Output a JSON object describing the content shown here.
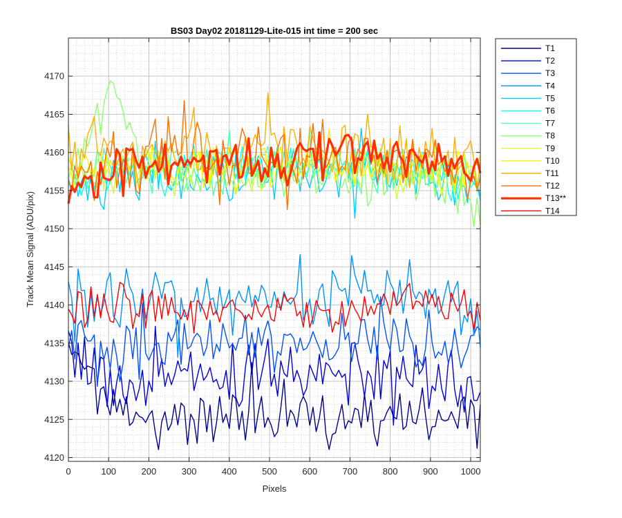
{
  "chart_data": {
    "type": "line",
    "title": "BS03 Day02 20181129-Lite-015 int time = 200 sec",
    "xlabel": "Pixels",
    "ylabel": "Track Mean Signal (ADU/pix)",
    "xlim": [
      0,
      1024
    ],
    "ylim": [
      4119.5,
      4175
    ],
    "x_ticks": [
      0,
      100,
      200,
      300,
      400,
      500,
      600,
      700,
      800,
      900,
      1000
    ],
    "y_ticks": [
      4120,
      4125,
      4130,
      4135,
      4140,
      4145,
      4150,
      4155,
      4160,
      4165,
      4170
    ],
    "y_minor_step": 1,
    "grid": true,
    "minor_grid": true,
    "legend_position": "outside-right",
    "x_sample_step": 8,
    "series": [
      {
        "name": "T1",
        "color": "#00008F",
        "width": 1.4,
        "noise": 1.8,
        "seed": 1,
        "base": [
          4135,
          4133,
          4130,
          4128,
          4125,
          4125,
          4125,
          4125,
          4125,
          4125,
          4125,
          4125,
          4126,
          4125,
          4124,
          4124,
          4125,
          4126,
          4126,
          4125,
          4124,
          4124,
          4125,
          4125,
          4125,
          4125,
          4125,
          4124,
          4125,
          4126,
          4126,
          4125
        ]
      },
      {
        "name": "T2",
        "color": "#0000D8",
        "width": 1.4,
        "noise": 2.0,
        "seed": 2,
        "base": [
          4133,
          4132,
          4131,
          4131,
          4130,
          4130,
          4131,
          4131,
          4131,
          4132,
          4131,
          4131,
          4131,
          4132,
          4131,
          4131,
          4131,
          4131,
          4130,
          4131,
          4131,
          4131,
          4131,
          4131,
          4130,
          4130,
          4131,
          4131,
          4130,
          4130,
          4130,
          4131
        ]
      },
      {
        "name": "T3",
        "color": "#0050FF",
        "width": 1.4,
        "noise": 2.0,
        "seed": 3,
        "base": [
          4136,
          4136,
          4135,
          4135,
          4134,
          4135,
          4135,
          4135,
          4135,
          4135,
          4135,
          4135,
          4135,
          4136,
          4136,
          4135,
          4135,
          4135,
          4135,
          4135,
          4135,
          4135,
          4136,
          4136,
          4136,
          4135,
          4135,
          4135,
          4135,
          4134,
          4135,
          4136
        ]
      },
      {
        "name": "T4",
        "color": "#0090FF",
        "width": 1.4,
        "noise": 2.2,
        "seed": 4,
        "base": [
          4141,
          4140,
          4140,
          4140,
          4140,
          4141,
          4140,
          4140,
          4140,
          4141,
          4141,
          4141,
          4140,
          4141,
          4141,
          4141,
          4140,
          4141,
          4141,
          4142,
          4142,
          4143,
          4142,
          4143,
          4143,
          4142,
          4142,
          4142,
          4141,
          4140,
          4140,
          4139
        ]
      },
      {
        "name": "T5",
        "color": "#00CFFF",
        "width": 1.4,
        "noise": 1.6,
        "seed": 5,
        "base": [
          4156,
          4155,
          4155,
          4156,
          4157,
          4157,
          4157,
          4157,
          4157,
          4157,
          4157,
          4157,
          4157,
          4157,
          4157,
          4157,
          4157,
          4157,
          4157,
          4157,
          4157,
          4157,
          4157,
          4157,
          4157,
          4157,
          4157,
          4157,
          4156,
          4156,
          4156,
          4155
        ]
      },
      {
        "name": "T6",
        "color": "#10FFEF",
        "width": 1.4,
        "noise": 1.5,
        "seed": 6,
        "base": [
          4156,
          4156,
          4157,
          4157,
          4157,
          4158,
          4158,
          4158,
          4158,
          4158,
          4158,
          4158,
          4158,
          4158,
          4158,
          4158,
          4158,
          4158,
          4158,
          4158,
          4158,
          4158,
          4158,
          4158,
          4158,
          4158,
          4158,
          4158,
          4157,
          4157,
          4157,
          4156
        ]
      },
      {
        "name": "T7",
        "color": "#50FFAF",
        "width": 1.4,
        "noise": 1.5,
        "seed": 7,
        "base": [
          4157,
          4157,
          4158,
          4159,
          4158,
          4158,
          4158,
          4158,
          4158,
          4158,
          4158,
          4158,
          4158,
          4158,
          4158,
          4158,
          4158,
          4158,
          4158,
          4158,
          4158,
          4158,
          4158,
          4158,
          4158,
          4158,
          4157,
          4157,
          4157,
          4156,
          4156,
          4156
        ]
      },
      {
        "name": "T8",
        "color": "#8FFF70",
        "width": 1.4,
        "noise": 1.6,
        "seed": 8,
        "base": [
          4158,
          4160,
          4164,
          4168,
          4166,
          4161,
          4159,
          4158,
          4158,
          4157,
          4157,
          4157,
          4157,
          4157,
          4157,
          4157,
          4157,
          4157,
          4157,
          4157,
          4157,
          4157,
          4157,
          4157,
          4157,
          4156,
          4156,
          4156,
          4155,
          4155,
          4154,
          4153
        ]
      },
      {
        "name": "T9",
        "color": "#CFFF30",
        "width": 1.4,
        "noise": 1.5,
        "seed": 9,
        "base": [
          4158,
          4158,
          4158,
          4158,
          4158,
          4158,
          4158,
          4158,
          4158,
          4158,
          4158,
          4158,
          4158,
          4158,
          4158,
          4158,
          4158,
          4158,
          4158,
          4158,
          4158,
          4158,
          4158,
          4158,
          4158,
          4158,
          4158,
          4158,
          4158,
          4157,
          4157,
          4157
        ]
      },
      {
        "name": "T10",
        "color": "#FFEF00",
        "width": 1.4,
        "noise": 1.5,
        "seed": 10,
        "base": [
          4158,
          4158,
          4158,
          4158,
          4158,
          4158,
          4158,
          4158,
          4158,
          4158,
          4158,
          4158,
          4158,
          4158,
          4158,
          4158,
          4158,
          4158,
          4158,
          4158,
          4158,
          4158,
          4158,
          4158,
          4158,
          4158,
          4158,
          4158,
          4158,
          4157,
          4157,
          4157
        ]
      },
      {
        "name": "T11",
        "color": "#FFAF00",
        "width": 1.4,
        "noise": 2.0,
        "seed": 11,
        "base": [
          4160,
          4160,
          4160,
          4160,
          4160,
          4160,
          4160,
          4160,
          4160,
          4160,
          4160,
          4160,
          4160,
          4160,
          4160,
          4160,
          4160,
          4160,
          4160,
          4160,
          4160,
          4160,
          4160,
          4160,
          4160,
          4160,
          4160,
          4160,
          4160,
          4159,
          4159,
          4159
        ]
      },
      {
        "name": "T12",
        "color": "#FF7000",
        "width": 1.4,
        "noise": 2.0,
        "seed": 12,
        "base": [
          4158,
          4158,
          4158,
          4159,
          4159,
          4159,
          4159,
          4160,
          4160,
          4160,
          4160,
          4160,
          4160,
          4160,
          4160,
          4160,
          4160,
          4160,
          4160,
          4160,
          4160,
          4160,
          4160,
          4160,
          4160,
          4159,
          4159,
          4159,
          4159,
          4158,
          4158,
          4158
        ]
      },
      {
        "name": "T13**",
        "color": "#FF3000",
        "width": 3.2,
        "noise": 1.6,
        "seed": 13,
        "base": [
          4155,
          4155,
          4156,
          4157,
          4157,
          4158,
          4158,
          4158,
          4159,
          4159,
          4159,
          4159,
          4159,
          4159,
          4159,
          4159,
          4159,
          4159,
          4160,
          4160,
          4160,
          4160,
          4160,
          4160,
          4160,
          4160,
          4159,
          4159,
          4159,
          4158,
          4158,
          4157
        ]
      },
      {
        "name": "T14",
        "color": "#FF0000",
        "width": 1.4,
        "noise": 1.4,
        "seed": 14,
        "base": [
          4139,
          4139,
          4139,
          4139,
          4140,
          4140,
          4140,
          4140,
          4140,
          4139,
          4139,
          4139,
          4139,
          4139,
          4140,
          4140,
          4140,
          4140,
          4139,
          4139,
          4139,
          4139,
          4140,
          4140,
          4141,
          4141,
          4141,
          4141,
          4140,
          4140,
          4140,
          4140
        ]
      }
    ]
  }
}
